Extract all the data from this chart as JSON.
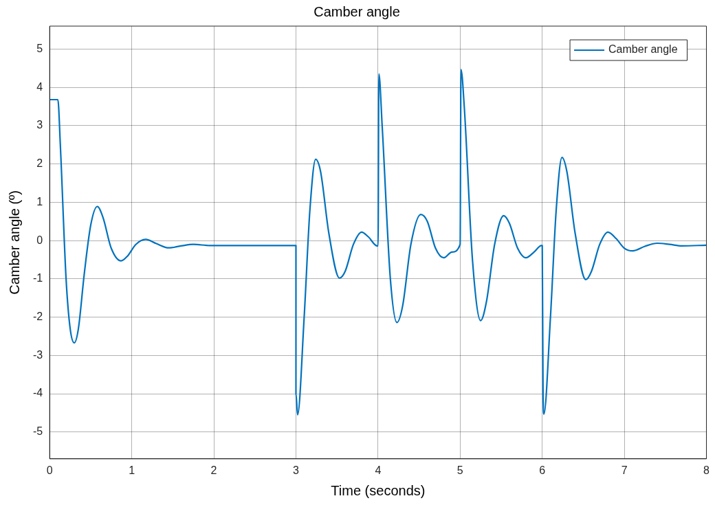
{
  "chart_data": {
    "type": "line",
    "title": "Camber angle",
    "xlabel": "Time (seconds)",
    "ylabel": "Camber angle (º)",
    "xlim": [
      0,
      8
    ],
    "xticks": [
      0,
      1,
      2,
      3,
      4,
      5,
      6,
      7,
      8
    ],
    "ylim": [
      -5.7,
      5.6
    ],
    "yticks": [
      -5,
      -4,
      -3,
      -2,
      -1,
      0,
      1,
      2,
      3,
      4,
      5
    ],
    "grid": true,
    "legend": "top right",
    "marker": "none",
    "line_style": "solid",
    "x": [
      0,
      0.1,
      0.13,
      0.2,
      0.25,
      0.3,
      0.35,
      0.42,
      0.5,
      0.58,
      0.65,
      0.75,
      0.87,
      0.95,
      1.05,
      1.17,
      1.3,
      1.45,
      1.6,
      1.75,
      1.95,
      2.5,
      3.0,
      3.0,
      3.02,
      3.1,
      3.17,
      3.24,
      3.3,
      3.4,
      3.53,
      3.6,
      3.7,
      3.8,
      3.88,
      3.99,
      4.0,
      4.01,
      4.05,
      4.15,
      4.23,
      4.3,
      4.4,
      4.52,
      4.6,
      4.7,
      4.8,
      4.9,
      5.0,
      5.01,
      5.05,
      5.15,
      5.25,
      5.32,
      5.42,
      5.53,
      5.6,
      5.7,
      5.8,
      5.9,
      5.99,
      6.0,
      6.01,
      6.02,
      6.1,
      6.17,
      6.24,
      6.3,
      6.4,
      6.53,
      6.6,
      6.7,
      6.8,
      6.9,
      7.0,
      7.1,
      7.25,
      7.4,
      7.55,
      7.7,
      8.0
    ],
    "series": [
      {
        "name": "Camber angle",
        "color": "#0072bd",
        "values": [
          3.68,
          3.68,
          2.5,
          -1,
          -2.3,
          -2.67,
          -2.3,
          -0.9,
          0.4,
          0.89,
          0.6,
          -0.2,
          -0.53,
          -0.4,
          -0.1,
          0.03,
          -0.08,
          -0.19,
          -0.14,
          -0.1,
          -0.13,
          -0.13,
          -0.13,
          -4.0,
          -4.55,
          -2.0,
          0.8,
          2.12,
          1.8,
          0.2,
          -0.98,
          -0.8,
          -0.1,
          0.22,
          0.1,
          -0.14,
          -0.14,
          4.35,
          3.0,
          -1.0,
          -2.14,
          -1.7,
          -0.1,
          0.68,
          0.5,
          -0.2,
          -0.45,
          -0.3,
          -0.1,
          4.47,
          3.5,
          -0.5,
          -2.09,
          -1.6,
          -0.1,
          0.65,
          0.45,
          -0.2,
          -0.45,
          -0.3,
          -0.13,
          -0.13,
          -4.0,
          -4.53,
          -2.0,
          0.8,
          2.17,
          1.8,
          0.2,
          -1.02,
          -0.8,
          -0.1,
          0.22,
          0.05,
          -0.2,
          -0.27,
          -0.15,
          -0.07,
          -0.1,
          -0.14,
          -0.12
        ]
      }
    ]
  }
}
